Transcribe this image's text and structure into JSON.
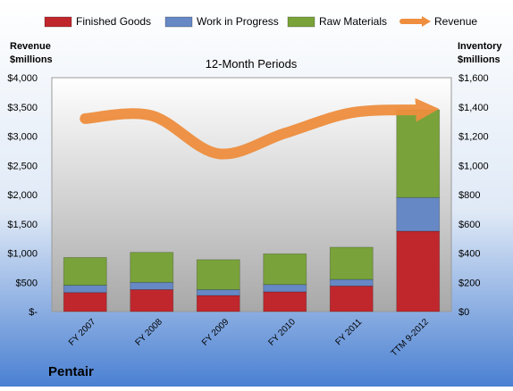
{
  "chart_data": {
    "type": "bar",
    "title": "12-Month Periods",
    "company": "Pentair",
    "left_axis_title": [
      "Revenue",
      "$millions"
    ],
    "right_axis_title": [
      "Inventory",
      "$millions"
    ],
    "categories": [
      "FY 2007",
      "FY 2008",
      "FY 2009",
      "FY 2010",
      "FY 2011",
      "TTM 9-2012"
    ],
    "left_ticks": [
      "$-",
      "$500",
      "$1,000",
      "$1,500",
      "$2,000",
      "$2,500",
      "$3,000",
      "$3,500",
      "$4,000"
    ],
    "right_ticks": [
      "$0",
      "$200",
      "$400",
      "$600",
      "$800",
      "$1,000",
      "$1,200",
      "$1,400",
      "$1,600"
    ],
    "left_ylim": [
      0,
      4000
    ],
    "right_ylim": [
      0,
      1600
    ],
    "stacked": true,
    "series": [
      {
        "name": "Finished Goods",
        "axis": "right",
        "color": "#c0272d",
        "values": [
          130,
          150,
          110,
          135,
          175,
          550
        ]
      },
      {
        "name": "Work in Progress",
        "axis": "right",
        "color": "#6688c4",
        "values": [
          50,
          50,
          40,
          50,
          45,
          230
        ]
      },
      {
        "name": "Raw Materials",
        "axis": "right",
        "color": "#79a33a",
        "values": [
          190,
          205,
          205,
          210,
          220,
          600
        ]
      },
      {
        "name": "Revenue",
        "axis": "left",
        "type": "line",
        "color": "#ee8e3e",
        "values": [
          3300,
          3350,
          2700,
          3050,
          3400,
          3450
        ]
      }
    ],
    "legend_position": "top",
    "grid": false
  }
}
